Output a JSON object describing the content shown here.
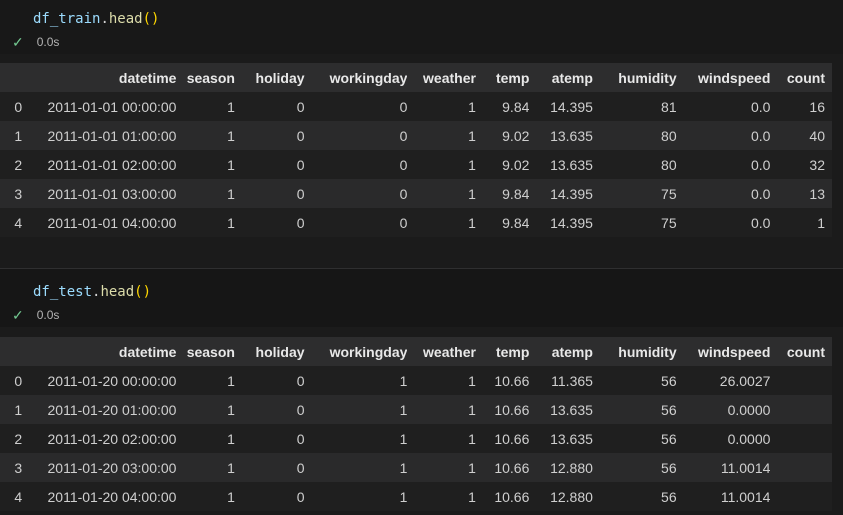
{
  "colors": {
    "background": "#181818",
    "output_background": "#1b1b1b",
    "header_row": "#2d2d2e",
    "row_even": "#1f1f1f",
    "row_odd": "#2a2a2b",
    "code_variable": "#9CDCFE",
    "code_method": "#DCDCAA",
    "code_paren": "#FFD700",
    "success_check": "#73C991"
  },
  "cells": [
    {
      "code": {
        "object": "df_train",
        "dot": ".",
        "method": "head",
        "parens": "()"
      },
      "status": {
        "check": "✓",
        "time": "0.0s"
      },
      "table": {
        "columns": [
          "",
          "datetime",
          "season",
          "holiday",
          "workingday",
          "weather",
          "temp",
          "atemp",
          "humidity",
          "windspeed",
          "count"
        ],
        "rows": [
          [
            "0",
            "2011-01-01 00:00:00",
            "1",
            "0",
            "0",
            "1",
            "9.84",
            "14.395",
            "81",
            "0.0",
            "16"
          ],
          [
            "1",
            "2011-01-01 01:00:00",
            "1",
            "0",
            "0",
            "1",
            "9.02",
            "13.635",
            "80",
            "0.0",
            "40"
          ],
          [
            "2",
            "2011-01-01 02:00:00",
            "1",
            "0",
            "0",
            "1",
            "9.02",
            "13.635",
            "80",
            "0.0",
            "32"
          ],
          [
            "3",
            "2011-01-01 03:00:00",
            "1",
            "0",
            "0",
            "1",
            "9.84",
            "14.395",
            "75",
            "0.0",
            "13"
          ],
          [
            "4",
            "2011-01-01 04:00:00",
            "1",
            "0",
            "0",
            "1",
            "9.84",
            "14.395",
            "75",
            "0.0",
            "1"
          ]
        ]
      }
    },
    {
      "code": {
        "object": "df_test",
        "dot": ".",
        "method": "head",
        "parens": "()"
      },
      "status": {
        "check": "✓",
        "time": "0.0s"
      },
      "table": {
        "columns": [
          "",
          "datetime",
          "season",
          "holiday",
          "workingday",
          "weather",
          "temp",
          "atemp",
          "humidity",
          "windspeed",
          "count"
        ],
        "rows": [
          [
            "0",
            "2011-01-20 00:00:00",
            "1",
            "0",
            "1",
            "1",
            "10.66",
            "11.365",
            "56",
            "26.0027",
            ""
          ],
          [
            "1",
            "2011-01-20 01:00:00",
            "1",
            "0",
            "1",
            "1",
            "10.66",
            "13.635",
            "56",
            "0.0000",
            ""
          ],
          [
            "2",
            "2011-01-20 02:00:00",
            "1",
            "0",
            "1",
            "1",
            "10.66",
            "13.635",
            "56",
            "0.0000",
            ""
          ],
          [
            "3",
            "2011-01-20 03:00:00",
            "1",
            "0",
            "1",
            "1",
            "10.66",
            "12.880",
            "56",
            "11.0014",
            ""
          ],
          [
            "4",
            "2011-01-20 04:00:00",
            "1",
            "0",
            "1",
            "1",
            "10.66",
            "12.880",
            "56",
            "11.0014",
            ""
          ]
        ]
      }
    }
  ]
}
